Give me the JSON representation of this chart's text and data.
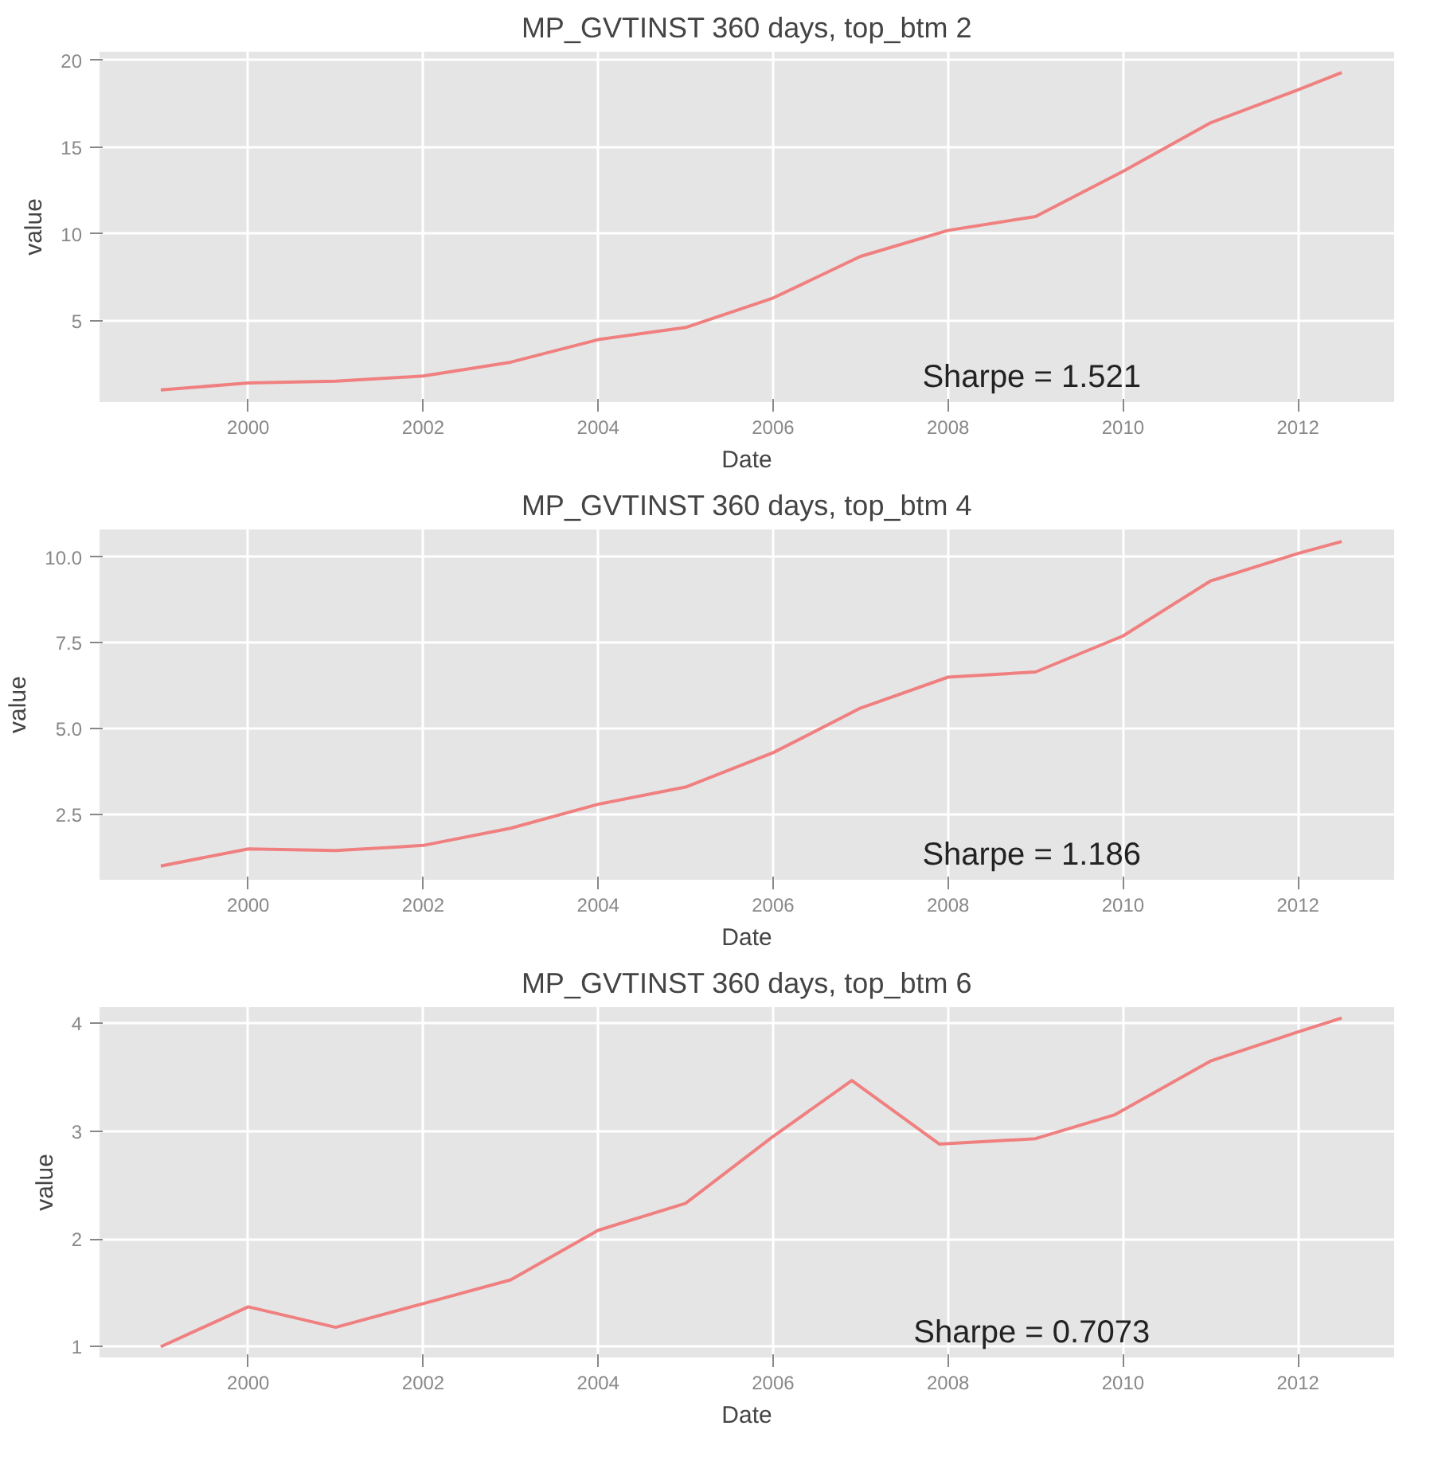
{
  "chart_data": [
    {
      "type": "line",
      "title": "MP_GVTINST 360 days, top_btm 2",
      "xlabel": "Date",
      "ylabel": "value",
      "x": [
        1999,
        2000,
        2001,
        2002,
        2003,
        2004,
        2005,
        2006,
        2007,
        2008,
        2009,
        2010,
        2011,
        2012,
        2012.5
      ],
      "series": [
        {
          "color": "#f08080",
          "values": [
            1.0,
            1.4,
            1.5,
            1.8,
            2.6,
            3.9,
            4.6,
            6.3,
            8.7,
            10.2,
            11.0,
            13.6,
            16.4,
            18.3,
            19.3
          ]
        }
      ],
      "xlim": [
        1998.3,
        2013.1
      ],
      "ylim": [
        0.3,
        20.5
      ],
      "xticks": [
        2000,
        2002,
        2004,
        2006,
        2008,
        2010,
        2012
      ],
      "yticks": [
        5,
        10,
        15,
        20
      ],
      "grid": true,
      "annotations": [
        "Sharpe = 1.521"
      ]
    },
    {
      "type": "line",
      "title": "MP_GVTINST 360 days, top_btm 4",
      "xlabel": "Date",
      "ylabel": "value",
      "x": [
        1999,
        2000,
        2001,
        2002,
        2003,
        2004,
        2005,
        2006,
        2007,
        2008,
        2009,
        2010,
        2011,
        2012,
        2012.5
      ],
      "series": [
        {
          "color": "#f08080",
          "values": [
            1.0,
            1.5,
            1.45,
            1.6,
            2.1,
            2.8,
            3.3,
            4.3,
            5.6,
            6.5,
            6.65,
            7.7,
            9.3,
            10.1,
            10.45
          ]
        }
      ],
      "xlim": [
        1998.3,
        2013.1
      ],
      "ylim": [
        0.6,
        10.8
      ],
      "xticks": [
        2000,
        2002,
        2004,
        2006,
        2008,
        2010,
        2012
      ],
      "yticks": [
        {
          "value": 2.5,
          "label": "2.5"
        },
        {
          "value": 5,
          "label": "5.0"
        },
        {
          "value": 7.5,
          "label": "7.5"
        },
        {
          "value": 10,
          "label": "10.0"
        }
      ],
      "grid": true,
      "annotations": [
        "Sharpe = 1.186"
      ]
    },
    {
      "type": "line",
      "title": "MP_GVTINST 360 days, top_btm 6",
      "xlabel": "Date",
      "ylabel": "value",
      "x": [
        1999,
        2000,
        2001,
        2002,
        2003,
        2004,
        2005,
        2006,
        2006.9,
        2007.9,
        2009,
        2009.9,
        2011,
        2012,
        2012.5
      ],
      "series": [
        {
          "color": "#f08080",
          "values": [
            1.0,
            1.37,
            1.18,
            1.4,
            1.62,
            2.08,
            2.33,
            2.95,
            3.47,
            2.88,
            2.93,
            3.15,
            3.65,
            3.92,
            4.05
          ]
        }
      ],
      "xlim": [
        1998.3,
        2013.1
      ],
      "ylim": [
        0.9,
        4.15
      ],
      "xticks": [
        2000,
        2002,
        2004,
        2006,
        2008,
        2010,
        2012
      ],
      "yticks": [
        1,
        2,
        3,
        4
      ],
      "grid": true,
      "annotations": [
        "Sharpe = 0.7073"
      ]
    }
  ]
}
